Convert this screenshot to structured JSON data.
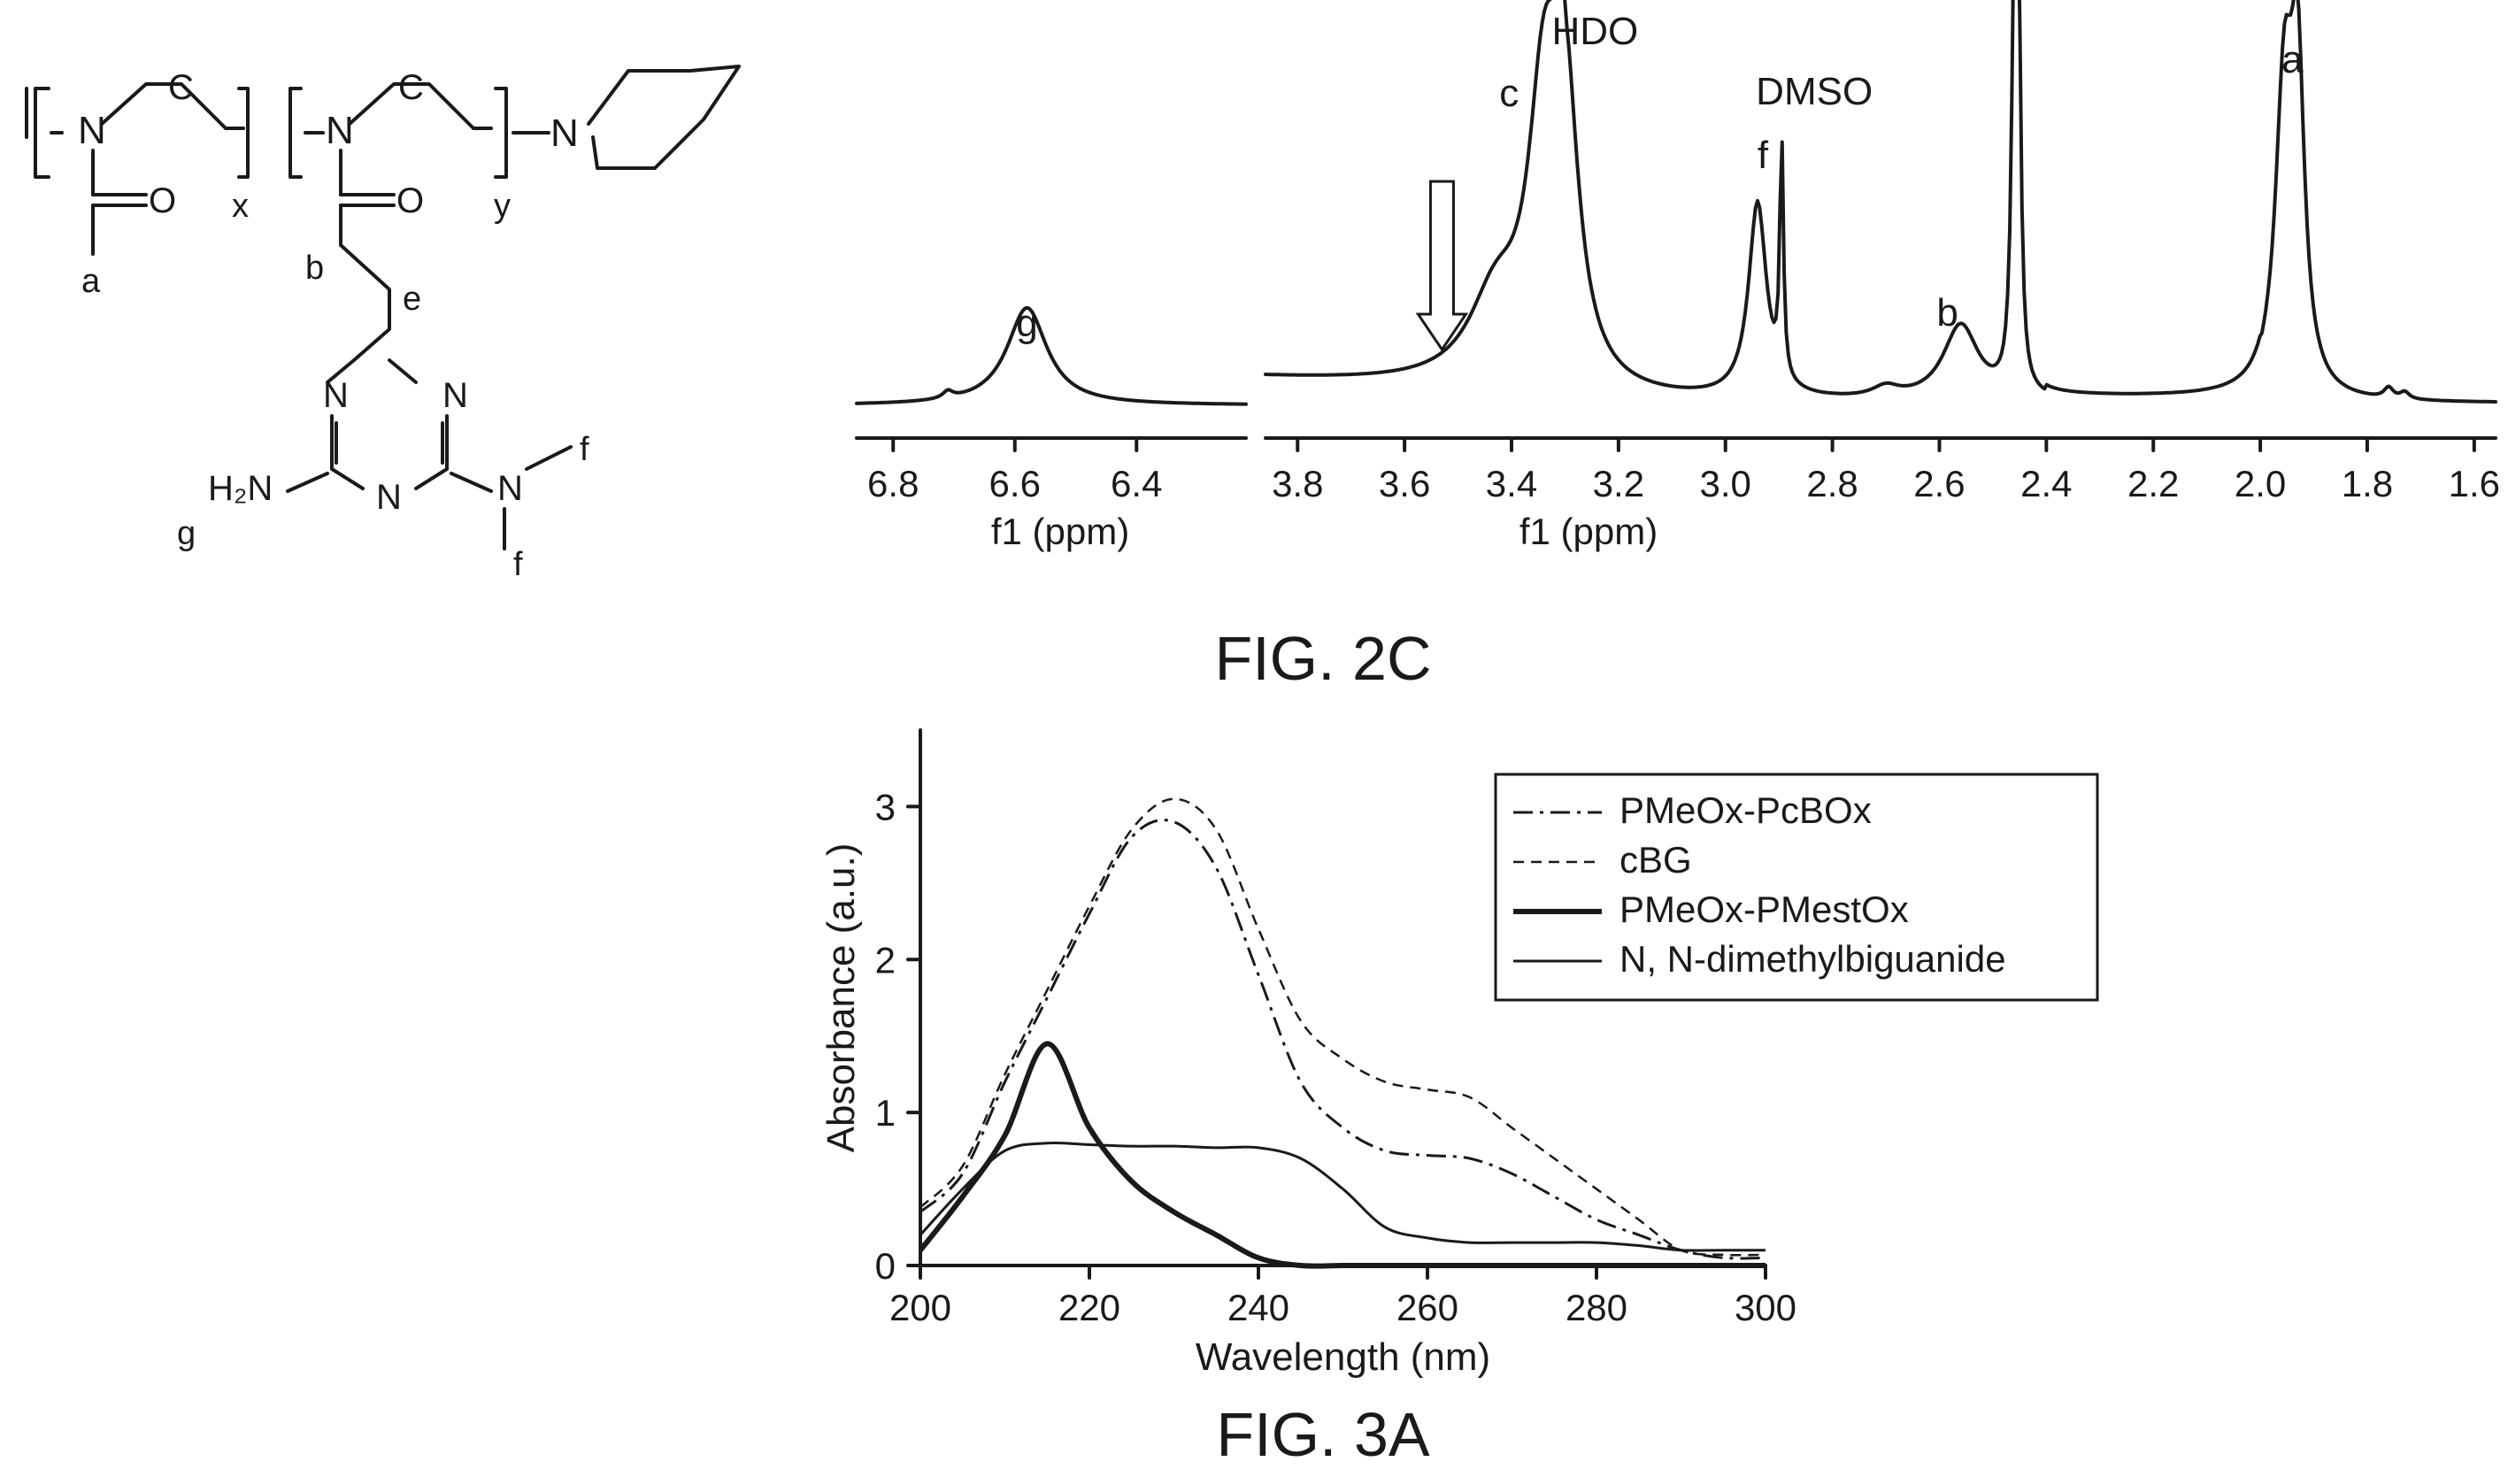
{
  "structure": {
    "labels": {
      "n1": "N",
      "c1": "C",
      "o1": "O",
      "x": "x",
      "n2": "N",
      "c2": "C",
      "o2": "O",
      "y": "y",
      "n3": "N",
      "a": "a",
      "b": "b",
      "e": "e",
      "tn1": "N",
      "tn2": "N",
      "tn3": "N",
      "h2n": "H₂N",
      "nme": "N",
      "f1": "f",
      "f2": "f",
      "g": "g"
    }
  },
  "fig2c": {
    "caption": "FIG. 2C",
    "panels": [
      {
        "xlabel": "f1 (ppm)",
        "xlim": [
          6.86,
          6.22
        ],
        "ticks": [
          "6.8",
          "6.6",
          "6.4"
        ],
        "tick_values": [
          6.8,
          6.6,
          6.4
        ],
        "peak_labels": [
          {
            "text": "g",
            "ppm": 6.58
          }
        ]
      },
      {
        "xlabel": "f1 (ppm)",
        "xlim": [
          3.86,
          1.56
        ],
        "ticks": [
          "3.8",
          "3.6",
          "3.4",
          "3.2",
          "3.0",
          "2.8",
          "2.6",
          "2.4",
          "2.2",
          "2.0",
          "1.8",
          "1.6"
        ],
        "tick_values": [
          3.8,
          3.6,
          3.4,
          3.2,
          3.0,
          2.8,
          2.6,
          2.4,
          2.2,
          2.0,
          1.8,
          1.6
        ],
        "peak_labels": [
          {
            "text": "c",
            "ppm": 3.33
          },
          {
            "text": "HDO",
            "ppm": 3.31
          },
          {
            "text": "DMSO",
            "ppm": 2.9
          },
          {
            "text": "f",
            "ppm": 2.93
          },
          {
            "text": "b",
            "ppm": 2.56
          },
          {
            "text": "a",
            "ppm": 1.94
          }
        ],
        "arrow_ppm": 3.53
      }
    ]
  },
  "chart_data": {
    "type": "line",
    "caption": "FIG. 3A",
    "xlabel": "Wavelength (nm)",
    "ylabel": "Absorbance (a.u.)",
    "xlim": [
      200,
      300
    ],
    "ylim": [
      0,
      3.5
    ],
    "xticks": [
      "200",
      "220",
      "240",
      "260",
      "280",
      "300"
    ],
    "yticks": [
      "0",
      "1",
      "2",
      "3"
    ],
    "legend_position": "top-right",
    "x": [
      200,
      205,
      210,
      215,
      220,
      225,
      230,
      235,
      240,
      245,
      250,
      255,
      260,
      265,
      270,
      275,
      280,
      285,
      290,
      295,
      300
    ],
    "series": [
      {
        "name": "PMeOx-PcBOx",
        "style": "dashdot",
        "values": [
          0.35,
          0.6,
          1.2,
          1.75,
          2.3,
          2.8,
          2.9,
          2.6,
          1.9,
          1.2,
          0.9,
          0.75,
          0.72,
          0.7,
          0.6,
          0.45,
          0.3,
          0.2,
          0.1,
          0.05,
          0.05
        ]
      },
      {
        "name": "cBG",
        "style": "dashed",
        "values": [
          0.38,
          0.65,
          1.25,
          1.8,
          2.35,
          2.85,
          3.05,
          2.85,
          2.2,
          1.6,
          1.35,
          1.2,
          1.15,
          1.1,
          0.9,
          0.7,
          0.5,
          0.3,
          0.1,
          0.07,
          0.07
        ]
      },
      {
        "name": "PMeOx-PMestOx",
        "style": "bold",
        "values": [
          0.1,
          0.45,
          0.85,
          1.45,
          0.9,
          0.55,
          0.35,
          0.2,
          0.05,
          0.0,
          0.0,
          0.0,
          0.0,
          0.0,
          0.0,
          0.0,
          0.0,
          0.0,
          0.0,
          0.0,
          0.0
        ]
      },
      {
        "name": "N, N-dimethylbiguanide",
        "style": "solid",
        "values": [
          0.2,
          0.5,
          0.75,
          0.8,
          0.79,
          0.78,
          0.78,
          0.77,
          0.77,
          0.7,
          0.5,
          0.25,
          0.18,
          0.15,
          0.15,
          0.15,
          0.15,
          0.13,
          0.1,
          0.1,
          0.1
        ]
      }
    ]
  }
}
